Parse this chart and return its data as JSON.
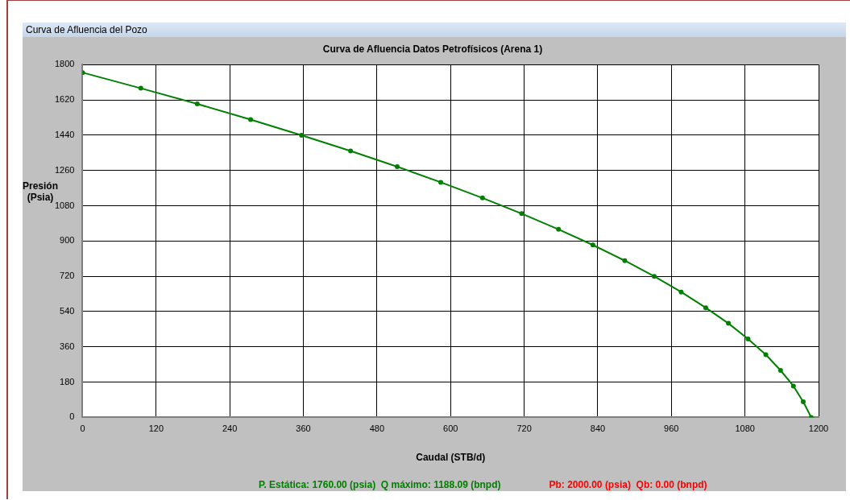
{
  "chart_data": {
    "type": "line",
    "subtitle": "Curva de Afluencia del Pozo",
    "title": "Curva de Afluencia Datos Petrofísicos (Arena 1)",
    "xlabel": "Caudal (STB/d)",
    "ylabel": "Presión (Psia)",
    "x": [
      0,
      95,
      187,
      274,
      357,
      437,
      513,
      584,
      652,
      716,
      776,
      832,
      884,
      932,
      976,
      1016,
      1053,
      1085,
      1114,
      1138,
      1159,
      1175,
      1188
    ],
    "series": [
      {
        "color": "#008000",
        "values": [
          1760,
          1680,
          1600,
          1520,
          1440,
          1360,
          1280,
          1200,
          1120,
          1040,
          960,
          880,
          800,
          720,
          640,
          560,
          480,
          400,
          320,
          240,
          160,
          80,
          0
        ]
      }
    ],
    "xlim": [
      0,
      1200
    ],
    "xticks": [
      0,
      120,
      240,
      360,
      480,
      600,
      720,
      840,
      960,
      1080,
      1200
    ],
    "ylim": [
      0,
      1800
    ],
    "yticks": [
      0,
      180,
      360,
      540,
      720,
      900,
      1080,
      1260,
      1440,
      1620,
      1800
    ],
    "grid": true,
    "legend": false,
    "marker": "circle",
    "line_style": "solid",
    "annotations": [
      "P. Estática: 1760.00 (psia)  Q máximo: 1188.09 (bnpd)",
      "Pb: 2000.00 (psia)  Qb: 0.00 (bnpd)"
    ]
  }
}
